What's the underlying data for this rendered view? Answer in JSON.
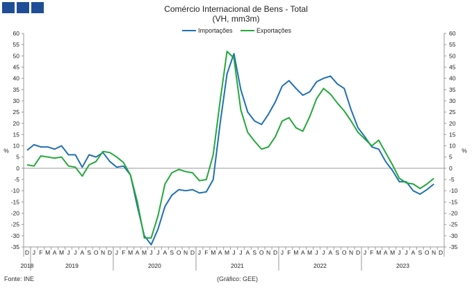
{
  "header": {
    "title": "Comércio Internacional de Bens - Total",
    "subtitle": "(VH, mm3m)"
  },
  "footer": {
    "source": "Fonte: INE",
    "credit": "(Gráfico: GEE)"
  },
  "colors": {
    "importacoes": "#1f6fb2",
    "exportacoes": "#22a83a",
    "logo": "#1f4e96"
  },
  "chart_data": {
    "type": "line",
    "title": "Comércio Internacional de Bens - Total",
    "subtitle": "(VH, mm3m)",
    "ylabel": "%",
    "ylabel_right": "%",
    "ylim": [
      -35,
      60
    ],
    "yticks": [
      -35,
      -30,
      -25,
      -20,
      -15,
      -10,
      -5,
      0,
      5,
      10,
      15,
      20,
      25,
      30,
      35,
      40,
      45,
      50,
      55,
      60
    ],
    "legend_position": "top",
    "grid": false,
    "month_labels": [
      "D",
      "J",
      "F",
      "M",
      "A",
      "M",
      "J",
      "J",
      "A",
      "S",
      "O",
      "N",
      "D",
      "J",
      "F",
      "M",
      "A",
      "M",
      "J",
      "J",
      "A",
      "S",
      "O",
      "N",
      "D",
      "J",
      "F",
      "M",
      "A",
      "M",
      "J",
      "J",
      "A",
      "S",
      "O",
      "N",
      "D",
      "J",
      "F",
      "M",
      "A",
      "M",
      "J",
      "J",
      "A",
      "S",
      "O",
      "N",
      "D",
      "J",
      "F",
      "M",
      "A",
      "M",
      "J",
      "J",
      "A",
      "S",
      "O",
      "N",
      "D"
    ],
    "year_labels": [
      {
        "label": "2018",
        "index": 0
      },
      {
        "label": "2019",
        "index": 6.5
      },
      {
        "label": "2020",
        "index": 18.5
      },
      {
        "label": "2021",
        "index": 30.5
      },
      {
        "label": "2022",
        "index": 42.5
      },
      {
        "label": "2023",
        "index": 54.5
      }
    ],
    "series": [
      {
        "name": "Importações",
        "values": [
          8,
          10.5,
          9.5,
          9.5,
          8.5,
          10,
          6,
          6,
          0.5,
          6,
          5,
          7,
          3,
          0.5,
          1,
          -3,
          -17,
          -30,
          -34,
          -27,
          -17,
          -12,
          -9.5,
          -10,
          -9.5,
          -11,
          -10.5,
          -5,
          20,
          42,
          51,
          35,
          25,
          21,
          19.5,
          24,
          29.5,
          36.5,
          39,
          35.5,
          32.5,
          34,
          38.5,
          40,
          41,
          37.5,
          35.5,
          26,
          18,
          14,
          9.5,
          8.5,
          3,
          -1,
          -6,
          -6,
          -10,
          -11.5,
          -9.5,
          -7
        ]
      },
      {
        "name": "Exportações",
        "values": [
          1.5,
          1,
          5.5,
          5,
          4.5,
          5,
          1,
          0.5,
          -3.5,
          1.5,
          3,
          7.5,
          7,
          5,
          2.5,
          -3,
          -15,
          -31,
          -31,
          -21,
          -7,
          -2,
          -0.5,
          -1.5,
          -2,
          -5.5,
          -5,
          6,
          30,
          52,
          49,
          26,
          16,
          12,
          8.5,
          9.5,
          14,
          21,
          22.5,
          18,
          16.5,
          23,
          31,
          35.5,
          33,
          29,
          25.5,
          21,
          16,
          13,
          10,
          12.5,
          7,
          1.5,
          -4.5,
          -6.5,
          -7,
          -9,
          -7,
          -4.5
        ]
      }
    ]
  }
}
